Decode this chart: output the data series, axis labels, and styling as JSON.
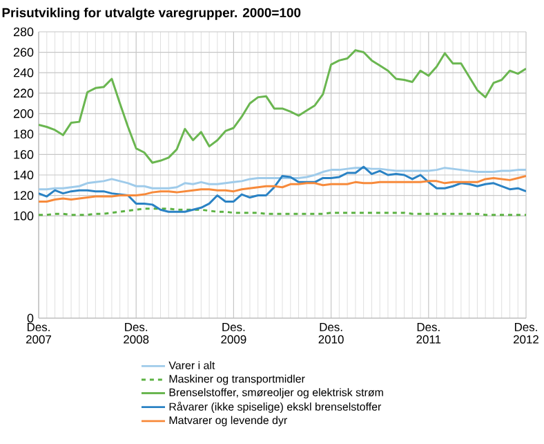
{
  "chart_data": {
    "type": "line",
    "title": "Prisutvikling for utvalgte varegrupper. 2000=100",
    "x": [
      "2007-12",
      "2008-01",
      "2008-02",
      "2008-03",
      "2008-04",
      "2008-05",
      "2008-06",
      "2008-07",
      "2008-08",
      "2008-09",
      "2008-10",
      "2008-11",
      "2008-12",
      "2009-01",
      "2009-02",
      "2009-03",
      "2009-04",
      "2009-05",
      "2009-06",
      "2009-07",
      "2009-08",
      "2009-09",
      "2009-10",
      "2009-11",
      "2009-12",
      "2010-01",
      "2010-02",
      "2010-03",
      "2010-04",
      "2010-05",
      "2010-06",
      "2010-07",
      "2010-08",
      "2010-09",
      "2010-10",
      "2010-11",
      "2010-12",
      "2011-01",
      "2011-02",
      "2011-03",
      "2011-04",
      "2011-05",
      "2011-06",
      "2011-07",
      "2011-08",
      "2011-09",
      "2011-10",
      "2011-11",
      "2011-12",
      "2012-01",
      "2012-02",
      "2012-03",
      "2012-04",
      "2012-05",
      "2012-06",
      "2012-07",
      "2012-08",
      "2012-09",
      "2012-10",
      "2012-11",
      "2012-12"
    ],
    "series": [
      {
        "name": "Varer i alt",
        "color": "#9fcbea",
        "line_style": "solid",
        "values": [
          126,
          126,
          127,
          127,
          128,
          129,
          132,
          133,
          134,
          136,
          134,
          132,
          129,
          129,
          127,
          127,
          127,
          128,
          132,
          131,
          133,
          131,
          131,
          132,
          133,
          134,
          136,
          137,
          137,
          137,
          137,
          137,
          137,
          138,
          140,
          143,
          145,
          145,
          146,
          147,
          147,
          146,
          146,
          145,
          144,
          144,
          144,
          144,
          144,
          145,
          147,
          146,
          145,
          144,
          143,
          143,
          143,
          144,
          144,
          145,
          145
        ]
      },
      {
        "name": "Maskiner og transportmidler",
        "color": "#5cb243",
        "line_style": "dashed",
        "values": [
          101,
          101,
          102,
          102,
          101,
          101,
          101,
          102,
          102,
          103,
          104,
          105,
          106,
          107,
          107,
          107,
          107,
          106,
          106,
          106,
          106,
          105,
          104,
          104,
          103,
          103,
          103,
          103,
          102,
          102,
          102,
          102,
          102,
          102,
          102,
          102,
          103,
          103,
          103,
          103,
          103,
          103,
          103,
          103,
          103,
          103,
          102,
          102,
          102,
          102,
          102,
          102,
          102,
          102,
          102,
          101,
          101,
          101,
          101,
          101,
          101
        ]
      },
      {
        "name": "Brenselstoffer, smøreoljer og elektrisk strøm",
        "color": "#6ab650",
        "line_style": "solid",
        "values": [
          189,
          187,
          184,
          179,
          191,
          192,
          221,
          225,
          226,
          234,
          210,
          187,
          166,
          162,
          152,
          154,
          157,
          165,
          185,
          174,
          182,
          168,
          174,
          183,
          186,
          197,
          210,
          216,
          217,
          205,
          205,
          202,
          198,
          203,
          208,
          219,
          248,
          252,
          254,
          262,
          260,
          252,
          247,
          242,
          234,
          233,
          231,
          242,
          237,
          246,
          259,
          249,
          249,
          236,
          223,
          216,
          230,
          233,
          242,
          239,
          244
        ]
      },
      {
        "name": "Råvarer (ikke spiselige) ekskl brenselstoffer",
        "color": "#2a82c4",
        "line_style": "solid",
        "values": [
          122,
          119,
          125,
          122,
          124,
          125,
          125,
          124,
          124,
          122,
          121,
          120,
          112,
          112,
          111,
          106,
          104,
          104,
          104,
          106,
          108,
          112,
          120,
          114,
          114,
          121,
          118,
          120,
          120,
          128,
          139,
          138,
          133,
          133,
          133,
          137,
          137,
          138,
          142,
          142,
          148,
          141,
          144,
          140,
          141,
          140,
          136,
          140,
          133,
          127,
          127,
          129,
          132,
          131,
          129,
          131,
          132,
          129,
          126,
          127,
          124
        ]
      },
      {
        "name": "Matvarer og levende dyr",
        "color": "#f78a3b",
        "line_style": "solid",
        "values": [
          114,
          114,
          116,
          117,
          116,
          117,
          118,
          119,
          119,
          119,
          120,
          120,
          120,
          121,
          123,
          124,
          124,
          123,
          124,
          125,
          126,
          126,
          125,
          125,
          124,
          126,
          127,
          128,
          129,
          129,
          128,
          131,
          131,
          132,
          132,
          130,
          131,
          131,
          131,
          133,
          132,
          132,
          133,
          133,
          133,
          133,
          133,
          133,
          134,
          134,
          132,
          133,
          133,
          133,
          133,
          136,
          137,
          136,
          135,
          137,
          139
        ]
      }
    ],
    "xlim": [
      "2007-12",
      "2012-12"
    ],
    "xticks": [
      {
        "value": "2007-12",
        "label": "Des. 2007"
      },
      {
        "value": "2008-12",
        "label": "Des. 2008"
      },
      {
        "value": "2009-12",
        "label": "Des. 2009"
      },
      {
        "value": "2010-12",
        "label": "Des. 2010"
      },
      {
        "value": "2011-12",
        "label": "Des. 2011"
      },
      {
        "value": "2012-12",
        "label": "Des. 2012"
      }
    ],
    "ylim": [
      0,
      280
    ],
    "yticks": [
      0,
      100,
      120,
      140,
      160,
      180,
      200,
      220,
      240,
      260,
      280
    ],
    "grid": true,
    "legend": "bottom",
    "marker": "none"
  }
}
